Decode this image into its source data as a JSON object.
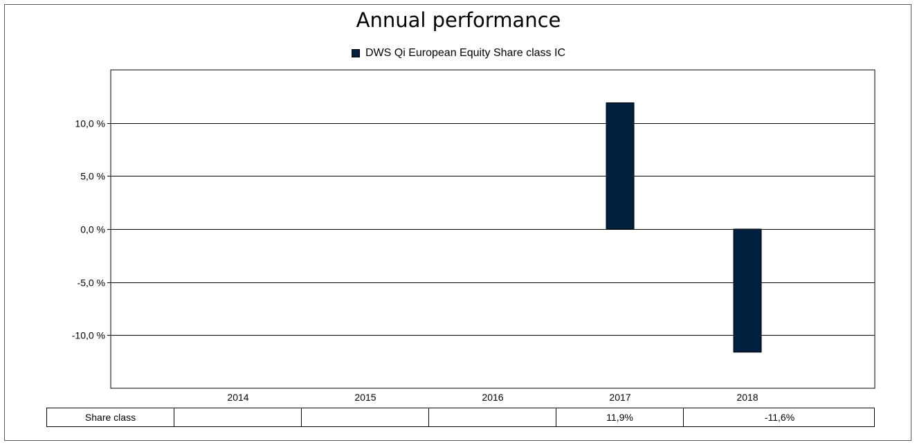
{
  "chart_data": {
    "type": "bar",
    "title": "Annual performance",
    "categories": [
      "2014",
      "2015",
      "2016",
      "2017",
      "2018"
    ],
    "series": [
      {
        "name": "DWS Qi European Equity Share class IC",
        "values": [
          null,
          null,
          null,
          11.9,
          -11.6
        ],
        "color": "#00203f"
      }
    ],
    "yticks": [
      "10,0 %",
      "5,0 %",
      "0,0 %",
      "-5,0 %",
      "-10,0 %"
    ],
    "ytick_values": [
      10,
      5,
      0,
      -5,
      -10
    ],
    "ylim": [
      -15,
      15
    ],
    "grid": true,
    "legend_position": "top-center"
  },
  "table": {
    "row_label": "Share class",
    "values": [
      "",
      "",
      "",
      "11,9%",
      "-11,6%"
    ]
  }
}
